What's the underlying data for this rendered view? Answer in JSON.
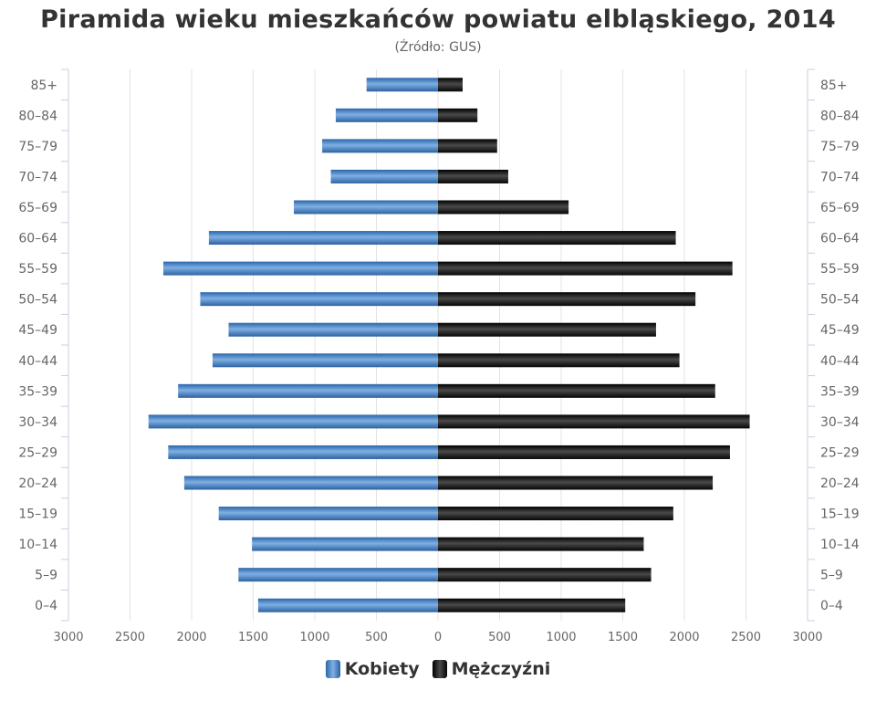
{
  "chart_data": {
    "type": "bar",
    "orientation": "horizontal",
    "layout": "population-pyramid",
    "title": "Piramida wieku mieszkańców powiatu elbląskiego, 2014",
    "subtitle": "(Źródło: GUS)",
    "categories": [
      "85+",
      "80–84",
      "75–79",
      "70–74",
      "65–69",
      "60–64",
      "55–59",
      "50–54",
      "45–49",
      "40–44",
      "35–39",
      "30–34",
      "25–29",
      "20–24",
      "15–19",
      "10–14",
      "5–9",
      "0–4"
    ],
    "series": [
      {
        "name": "Kobiety",
        "side": "left",
        "color": "#3f7fc0",
        "values": [
          580,
          830,
          940,
          870,
          1170,
          1860,
          2230,
          1930,
          1700,
          1830,
          2110,
          2350,
          2190,
          2060,
          1780,
          1510,
          1620,
          1460
        ]
      },
      {
        "name": "Mężczyźni",
        "side": "right",
        "color": "#1a1a1a",
        "values": [
          200,
          320,
          480,
          570,
          1060,
          1930,
          2390,
          2090,
          1770,
          1960,
          2250,
          2530,
          2370,
          2230,
          1910,
          1670,
          1730,
          1520
        ]
      }
    ],
    "x_ticks": [
      "3000",
      "2500",
      "2000",
      "1500",
      "1000",
      "500",
      "0",
      "500",
      "1000",
      "1500",
      "2000",
      "2500",
      "3000"
    ],
    "xlim": [
      -3000,
      3000
    ],
    "grid": true,
    "legend_position": "bottom-center"
  }
}
